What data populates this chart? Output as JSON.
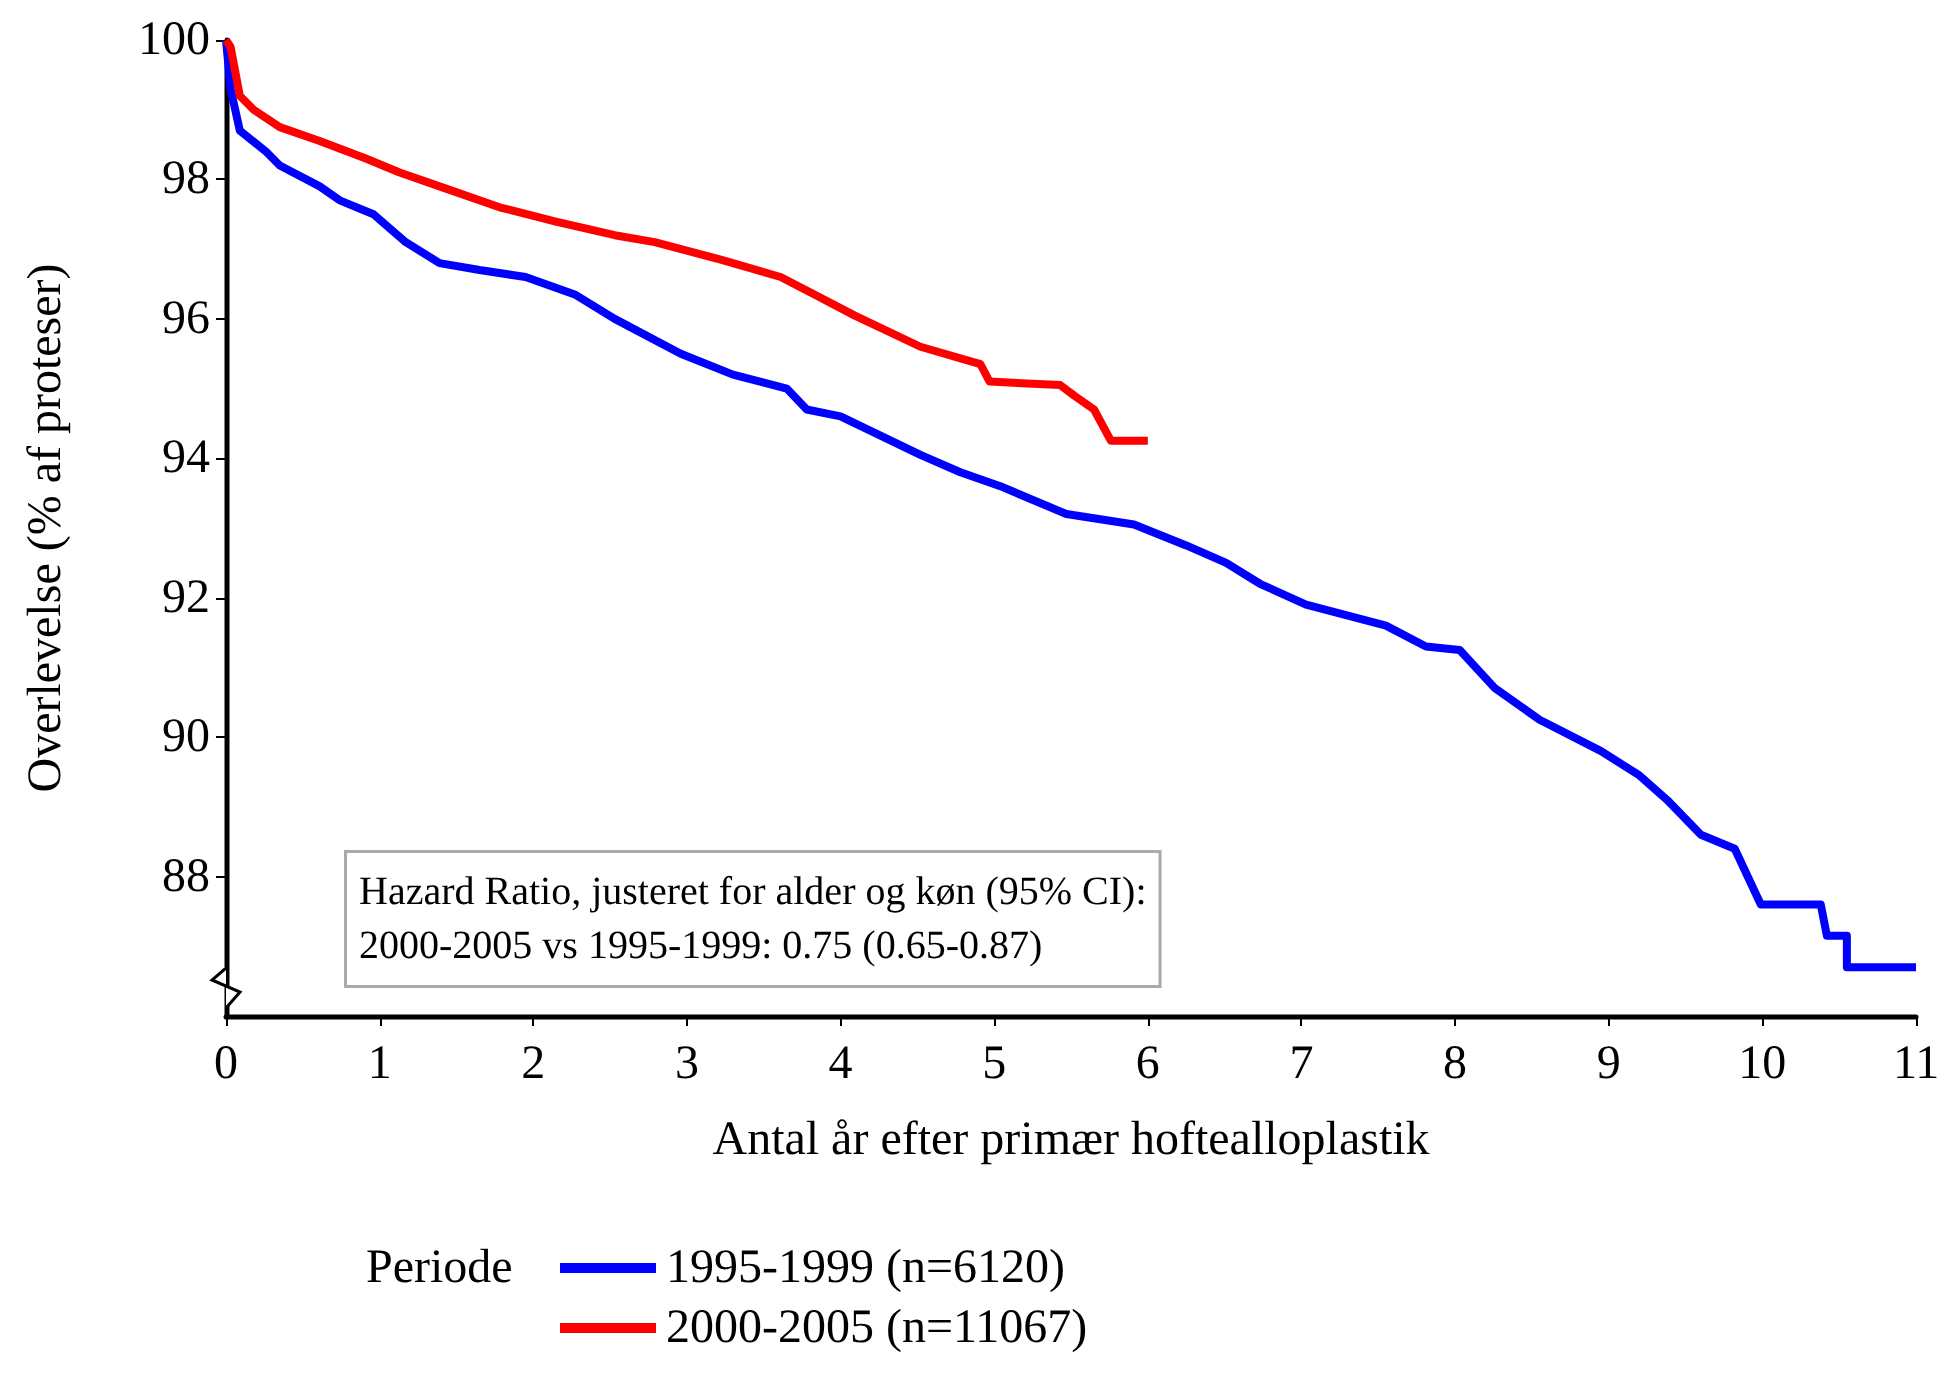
{
  "chart_data": {
    "type": "line",
    "xlabel": "Antal år efter primær hoftealloplastik",
    "ylabel": "Overlevelse (% af proteser)",
    "legend_title": "Periode",
    "legend": "bottom",
    "grid": false,
    "marker": "none",
    "xlim": [
      0,
      11
    ],
    "xticks": [
      0,
      1,
      2,
      3,
      4,
      5,
      6,
      7,
      8,
      9,
      10,
      11
    ],
    "ylim": [
      86,
      100
    ],
    "yticks": [
      88,
      90,
      92,
      94,
      96,
      98,
      100
    ],
    "annotations": [
      "Hazard Ratio, justeret for alder og køn (95% CI):",
      "2000-2005 vs 1995-1999: 0.75 (0.65-0.87)"
    ],
    "series": [
      {
        "name": "1995-1999 (n=6120)",
        "color": "#0000ff",
        "x": [
          0,
          0.03,
          0.09,
          0.26,
          0.35,
          0.61,
          0.74,
          0.96,
          1.17,
          1.39,
          1.65,
          1.95,
          2.27,
          2.53,
          2.96,
          3.3,
          3.65,
          3.78,
          4.0,
          4.52,
          4.78,
          5.04,
          5.47,
          5.91,
          6.25,
          6.51,
          6.73,
          7.03,
          7.55,
          7.81,
          8.03,
          8.26,
          8.55,
          8.95,
          9.2,
          9.38,
          9.6,
          9.82,
          9.99,
          10.38,
          10.42,
          10.55,
          10.55,
          11
        ],
        "values": [
          100,
          99.3,
          98.7,
          98.4,
          98.2,
          97.9,
          97.7,
          97.5,
          97.1,
          96.8,
          96.7,
          96.6,
          96.35,
          96.0,
          95.5,
          95.2,
          95.0,
          94.7,
          94.6,
          94.05,
          93.8,
          93.6,
          93.2,
          93.05,
          92.75,
          92.5,
          92.2,
          91.9,
          91.6,
          91.3,
          91.25,
          90.7,
          90.25,
          89.8,
          89.45,
          89.1,
          88.6,
          88.4,
          87.6,
          87.6,
          87.15,
          87.15,
          86.7,
          86.7
        ]
      },
      {
        "name": "2000-2005 (n=11067)",
        "color": "#ff0000",
        "x": [
          0,
          0.03,
          0.09,
          0.18,
          0.35,
          0.61,
          0.91,
          1.13,
          1.39,
          1.78,
          2.14,
          2.53,
          2.79,
          3.22,
          3.61,
          3.83,
          4.09,
          4.52,
          4.91,
          4.97,
          5.43,
          5.52,
          5.65,
          5.76,
          6.0
        ],
        "values": [
          100,
          99.9,
          99.2,
          99.0,
          98.75,
          98.55,
          98.3,
          98.1,
          97.9,
          97.6,
          97.4,
          97.2,
          97.1,
          96.85,
          96.6,
          96.35,
          96.05,
          95.6,
          95.35,
          95.1,
          95.05,
          94.9,
          94.7,
          94.25,
          94.25
        ]
      }
    ]
  }
}
